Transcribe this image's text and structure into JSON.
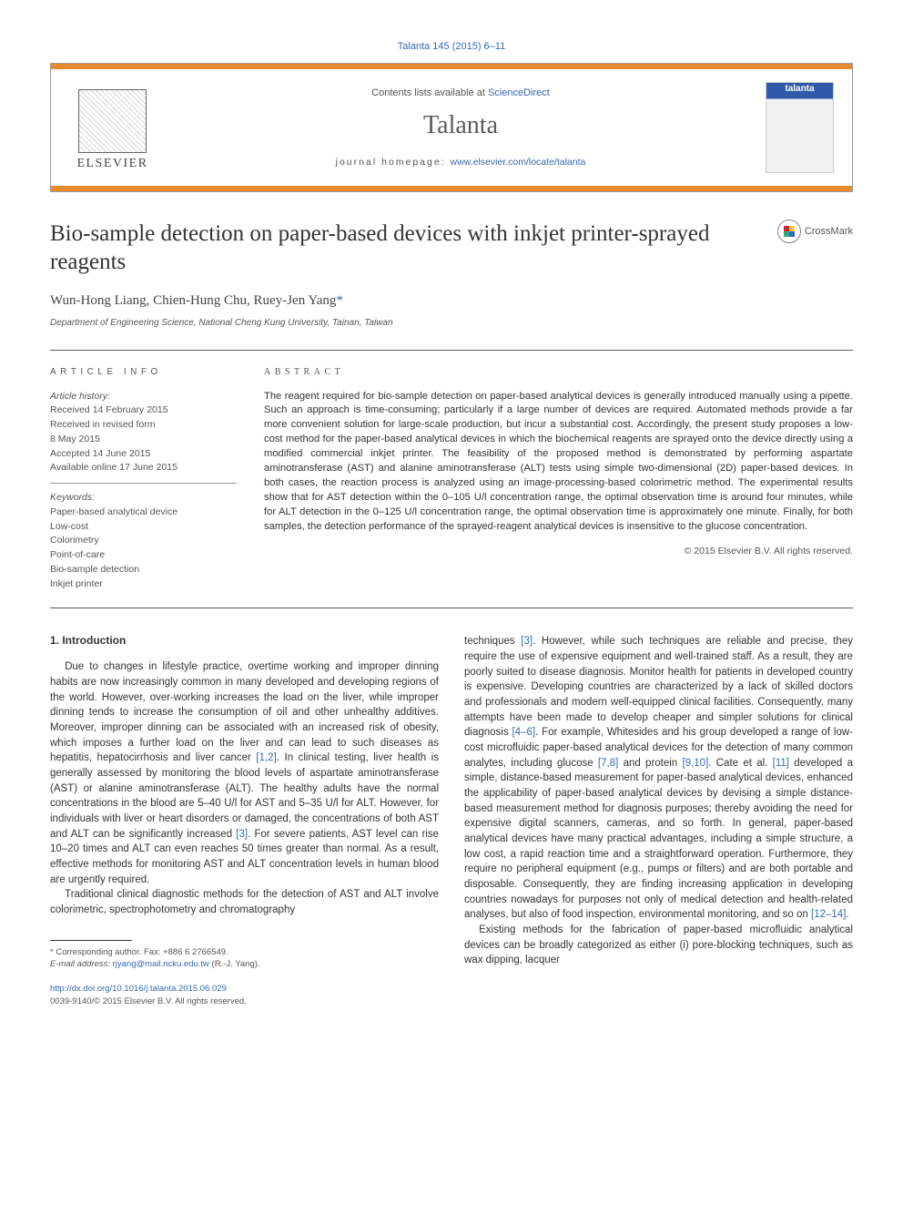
{
  "header": {
    "top_link": "Talanta 145 (2015) 6–11",
    "contents_line_prefix": "Contents lists available at ",
    "contents_line_link": "ScienceDirect",
    "journal_name": "Talanta",
    "homepage_prefix": "journal homepage: ",
    "homepage_url": "www.elsevier.com/locate/talanta",
    "publisher_caption": "ELSEVIER",
    "cover_label": "talanta"
  },
  "crossmark_label": "CrossMark",
  "title": "Bio-sample detection on paper-based devices with inkjet printer-sprayed reagents",
  "authors_line": "Wun-Hong Liang, Chien-Hung Chu, Ruey-Jen Yang",
  "corresponding_marker": "*",
  "affiliation": "Department of Engineering Science, National Cheng Kung University, Tainan, Taiwan",
  "article_info": {
    "label": "ARTICLE INFO",
    "history_label": "Article history:",
    "history": [
      "Received 14 February 2015",
      "Received in revised form",
      "8 May 2015",
      "Accepted 14 June 2015",
      "Available online 17 June 2015"
    ],
    "keywords_label": "Keywords:",
    "keywords": [
      "Paper-based analytical device",
      "Low-cost",
      "Colorimetry",
      "Point-of-care",
      "Bio-sample detection",
      "Inkjet printer"
    ]
  },
  "abstract": {
    "label": "ABSTRACT",
    "text": "The reagent required for bio-sample detection on paper-based analytical devices is generally introduced manually using a pipette. Such an approach is time-consuming; particularly if a large number of devices are required. Automated methods provide a far more convenient solution for large-scale production, but incur a substantial cost. Accordingly, the present study proposes a low-cost method for the paper-based analytical devices in which the biochemical reagents are sprayed onto the device directly using a modified commercial inkjet printer. The feasibility of the proposed method is demonstrated by performing aspartate aminotransferase (AST) and alanine aminotransferase (ALT) tests using simple two-dimensional (2D) paper-based devices. In both cases, the reaction process is analyzed using an image-processing-based colorimetric method. The experimental results show that for AST detection within the 0–105 U/l concentration range, the optimal observation time is around four minutes, while for ALT detection in the 0–125 U/l concentration range, the optimal observation time is approximately one minute. Finally, for both samples, the detection performance of the sprayed-reagent analytical devices is insensitive to the glucose concentration.",
    "copyright": "© 2015 Elsevier B.V. All rights reserved."
  },
  "body": {
    "intro_head": "1. Introduction",
    "left_p1": "Due to changes in lifestyle practice, overtime working and improper dinning habits are now increasingly common in many developed and developing regions of the world. However, over-working increases the load on the liver, while improper dinning tends to increase the consumption of oil and other unhealthy additives. Moreover, improper dinning can be associated with an increased risk of obesity, which imposes a further load on the liver and can lead to such diseases as hepatitis, hepatocirrhosis and liver cancer ",
    "ref_1_2": "[1,2]",
    "left_p1b": ". In clinical testing, liver health is generally assessed by monitoring the blood levels of aspartate aminotransferase (AST) or alanine aminotransferase (ALT). The healthy adults have the normal concentrations in the blood are 5–40 U/l for AST and 5–35 U/l for ALT. However, for individuals with liver or heart disorders or damaged, the concentrations of both AST and ALT can be significantly increased ",
    "ref_3a": "[3]",
    "left_p1c": ". For severe patients, AST level can rise 10–20 times and ALT can even reaches 50 times greater than normal. As a result, effective methods for monitoring AST and ALT concentration levels in human blood are urgently required.",
    "left_p2": "Traditional clinical diagnostic methods for the detection of AST and ALT involve colorimetric, spectrophotometry and chromatography",
    "right_p1a": "techniques ",
    "ref_3b": "[3]",
    "right_p1b": ". However, while such techniques are reliable and precise, they require the use of expensive equipment and well-trained staff. As a result, they are poorly suited to disease diagnosis. Monitor health for patients in developed country is expensive. Developing countries are characterized by a lack of skilled doctors and professionals and modern well-equipped clinical facilities. Consequently, many attempts have been made to develop cheaper and simpler solutions for clinical diagnosis ",
    "ref_4_6": "[4–6]",
    "right_p1c": ". For example, Whitesides and his group developed a range of low-cost microfluidic paper-based analytical devices for the detection of many common analytes, including glucose ",
    "ref_7_8": "[7,8]",
    "right_p1d": " and protein ",
    "ref_9_10": "[9,10]",
    "right_p1e": ". Cate et al. ",
    "ref_11": "[11]",
    "right_p1f": " developed a simple, distance-based measurement for paper-based analytical devices, enhanced the applicability of paper-based analytical devices by devising a simple distance-based measurement method for diagnosis purposes; thereby avoiding the need for expensive digital scanners, cameras, and so forth. In general, paper-based analytical devices have many practical advantages, including a simple structure, a low cost, a rapid reaction time and a straightforward operation. Furthermore, they require no peripheral equipment (e.g., pumps or filters) and are both portable and disposable. Consequently, they are finding increasing application in developing countries nowadays for purposes not only of medical detection and health-related analyses, but also of food inspection, environmental monitoring, and so on ",
    "ref_12_14": "[12–14]",
    "right_p1g": ".",
    "right_p2": "Existing methods for the fabrication of paper-based microfluidic analytical devices can be broadly categorized as either (i) pore-blocking techniques, such as wax dipping, lacquer"
  },
  "footnote": {
    "corresponding_label": "* Corresponding author. Fax: +886 6 2766549.",
    "email_label": "E-mail address: ",
    "email": "rjyang@mail.ncku.edu.tw",
    "email_suffix": " (R.-J. Yang)."
  },
  "doi": {
    "url": "http://dx.doi.org/10.1016/j.talanta.2015.06.029",
    "issn_line": "0039-9140/© 2015 Elsevier B.V. All rights reserved."
  },
  "colors": {
    "link": "#3569b4",
    "orange": "#e88b2d",
    "text": "#333333",
    "muted": "#555555"
  }
}
